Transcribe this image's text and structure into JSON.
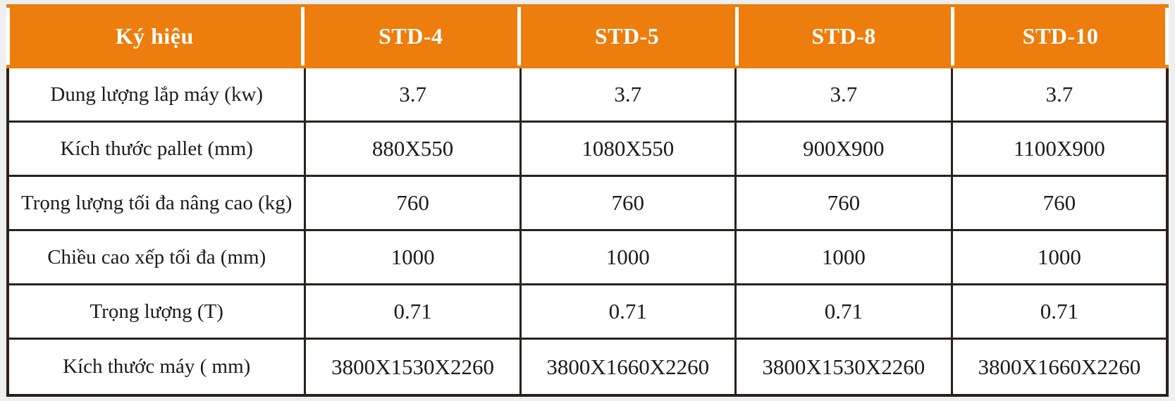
{
  "colors": {
    "page_background": "#EFEFEF",
    "header_background": "#ED7D0C",
    "header_text": "#FFFFFF",
    "border": "#2A211D",
    "cell_background": "#FFFFFF",
    "cell_text": "#1F1A17"
  },
  "table": {
    "header": {
      "label": "Ký hiệu",
      "columns": [
        "STD-4",
        "STD-5",
        "STD-8",
        "STD-10"
      ]
    },
    "rows": [
      {
        "label": "Dung lượng lắp máy (kw)",
        "values": [
          "3.7",
          "3.7",
          "3.7",
          "3.7"
        ]
      },
      {
        "label": "Kích thước pallet (mm)",
        "values": [
          "880X550",
          "1080X550",
          "900X900",
          "1100X900"
        ]
      },
      {
        "label": "Trọng lượng tối đa nâng cao (kg)",
        "values": [
          "760",
          "760",
          "760",
          "760"
        ]
      },
      {
        "label": "Chiều cao xếp tối đa (mm)",
        "values": [
          "1000",
          "1000",
          "1000",
          "1000"
        ]
      },
      {
        "label": "Trọng lượng (T)",
        "values": [
          "0.71",
          "0.71",
          "0.71",
          "0.71"
        ]
      },
      {
        "label": "Kích thước máy ( mm)",
        "values": [
          "3800X1530X2260",
          "3800X1660X2260",
          "3800X1530X2260",
          "3800X1660X2260"
        ]
      }
    ]
  }
}
